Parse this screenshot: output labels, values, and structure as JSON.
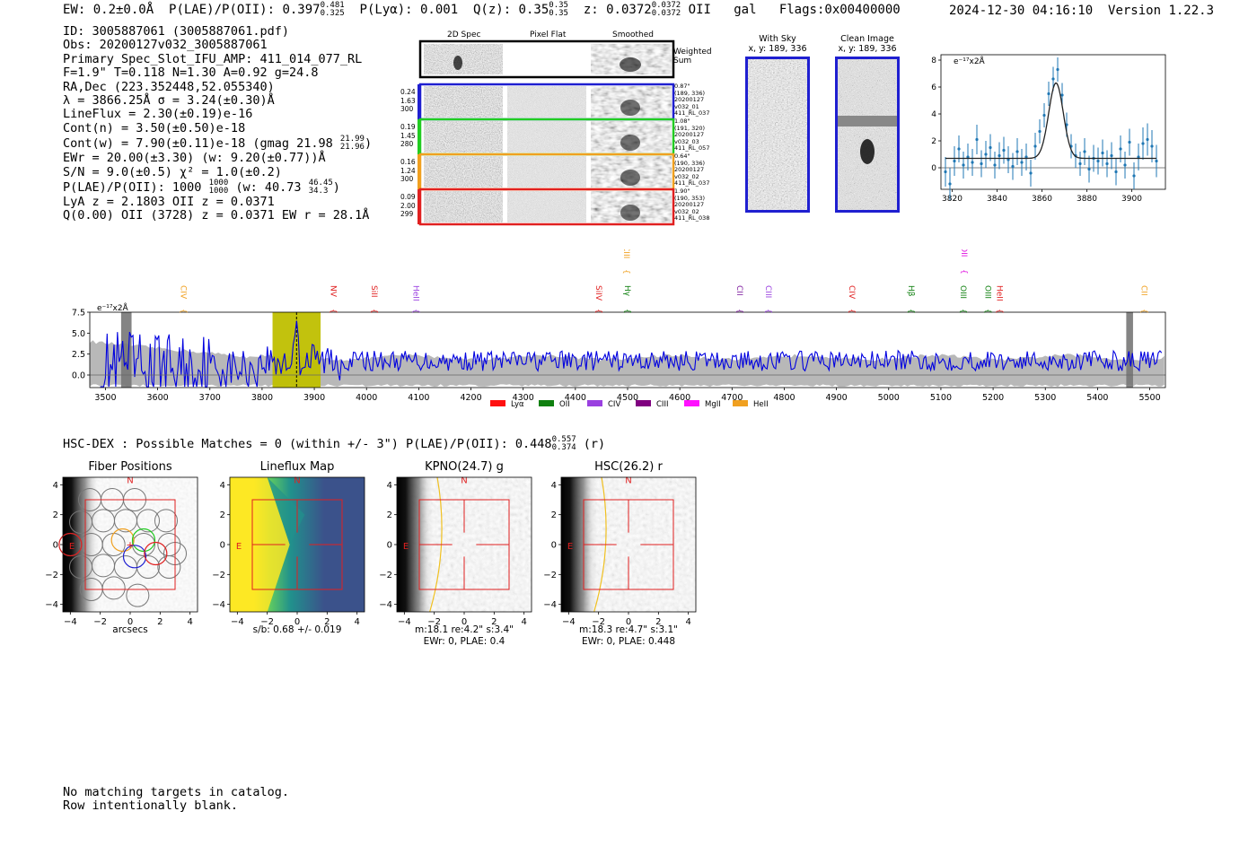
{
  "header": {
    "ew": "EW: 0.2±0.0Å",
    "plae_label": "P(LAE)/P(OII): 0.397",
    "plae_hi": "0.481",
    "plae_lo": "0.325",
    "plya": "P(Lyα): 0.001",
    "qz_label": "Q(z): 0.35",
    "qz_hi": "0.35",
    "qz_lo": "0.35",
    "z_label": "z: 0.0372",
    "z_hi": "0.0372",
    "z_lo": "0.0372",
    "line": "OII",
    "gal": "gal",
    "flags": "Flags:0x00400000",
    "datetime": "2024-12-30 04:16:10",
    "version": "Version 1.22.3"
  },
  "info": {
    "id": "ID: 3005887061 (3005887061.pdf)",
    "obs": "Obs: 20200127v032_3005887061",
    "primary": "Primary Spec_Slot_IFU_AMP: 411_014_077_RL",
    "fit": "F=1.9\"  T=0.118  N=1.30  A=0.92  g=24.8",
    "radec": "RA,Dec (223.352448,52.055340)",
    "lambda": "λ = 3866.25Å  σ = 3.24(±0.30)Å",
    "lineflux": "LineFlux = 2.30(±0.19)e-16",
    "contn": "Cont(n) = 3.50(±0.50)e-18",
    "contw": "Cont(w) = 7.90(±0.11)e-18 (gmag 21.98",
    "contw_hi": "21.99",
    "contw_lo": "21.96",
    "contw_end": ")",
    "ewr": "EWr = 20.00(±3.30) (w: 9.20(±0.77))Å",
    "sn": "S/N = 9.0(±0.5)  χ² = 1.0(±0.2)",
    "plae": "P(LAE)/P(OII): 1000",
    "plae_hi": "1000",
    "plae_lo": "1000",
    "plae_w": "(w: 40.73",
    "plae_w_hi": "46.45",
    "plae_w_lo": "34.3",
    "plae_end": ")",
    "lya": "LyA z = 2.1803  OII z = 0.0371",
    "q": "Q(0.00) OII (3728) z = 0.0371  EW r = 28.1Å"
  },
  "cutouts": {
    "col_2d": "2D Spec",
    "col_flat": "Pixel Flat",
    "col_smooth": "Smoothed",
    "weighted": "Weighted Sum",
    "rows": [
      {
        "color": "#1f1fd0",
        "left": [
          "0.24",
          "1.63",
          "300"
        ],
        "right": [
          "0.87\"",
          "(189, 336)",
          "20200127",
          "v032_01",
          "411_RL_037"
        ]
      },
      {
        "color": "#22cc22",
        "left": [
          "0.19",
          "1.45",
          "280"
        ],
        "right": [
          "1.08\"",
          "(191, 320)",
          "20200127",
          "v032_03",
          "411_RL_057"
        ]
      },
      {
        "color": "#f0a020",
        "left": [
          "0.16",
          "1.24",
          "300"
        ],
        "right": [
          "0.64\"",
          "(190, 336)",
          "20200127",
          "v032_02",
          "411_RL_037"
        ]
      },
      {
        "color": "#e02020",
        "left": [
          "0.09",
          "2.00",
          "299"
        ],
        "right": [
          "1.90\"",
          "(190, 353)",
          "20200127",
          "v032_02",
          "411_RL_038"
        ]
      }
    ]
  },
  "sky": {
    "with_sky_title": "With Sky",
    "with_sky_coords": "x, y: 189, 336",
    "clean_title": "Clean Image",
    "clean_coords": "x, y: 189, 336"
  },
  "line_fit": {
    "type": "scatter",
    "ylabel": "e⁻¹⁷x2Å",
    "xlim": [
      3815,
      3915
    ],
    "ylim": [
      -1.6,
      8.4
    ],
    "xticks": [
      "3820",
      "3840",
      "3860",
      "3880",
      "3900"
    ],
    "yticks": [
      "0",
      "2",
      "4",
      "6",
      "8"
    ],
    "model": {
      "center": 3866.25,
      "sigma": 3.24,
      "amp": 5.6,
      "baseline": 0.7
    },
    "points_x": [
      3817,
      3819,
      3821,
      3823,
      3825,
      3827,
      3829,
      3831,
      3833,
      3835,
      3837,
      3839,
      3841,
      3843,
      3845,
      3847,
      3849,
      3851,
      3853,
      3855,
      3857,
      3859,
      3861,
      3863,
      3865,
      3867,
      3869,
      3871,
      3873,
      3875,
      3877,
      3879,
      3881,
      3883,
      3885,
      3887,
      3889,
      3891,
      3893,
      3895,
      3897,
      3899,
      3901,
      3903,
      3905,
      3907,
      3909,
      3911
    ],
    "points_y": [
      -0.3,
      -1.2,
      0.5,
      1.4,
      0.2,
      0.8,
      0.4,
      2.1,
      0.3,
      1.0,
      1.5,
      0.2,
      0.9,
      1.3,
      0.6,
      0.1,
      1.2,
      0.4,
      0.8,
      -0.4,
      1.6,
      2.7,
      3.9,
      5.5,
      6.6,
      7.3,
      5.4,
      3.2,
      1.6,
      0.9,
      0.3,
      1.2,
      -0.1,
      0.7,
      0.5,
      1.1,
      0.3,
      0.9,
      -0.3,
      1.4,
      0.2,
      1.9,
      -0.6,
      0.8,
      1.8,
      2.1,
      1.6,
      0.5
    ],
    "errors": [
      1.1,
      1.2,
      1.1,
      1.0,
      1.0,
      1.0,
      1.0,
      1.1,
      1.0,
      1.0,
      1.0,
      1.0,
      1.0,
      1.0,
      1.0,
      1.0,
      1.0,
      1.0,
      1.0,
      1.0,
      1.0,
      0.9,
      0.9,
      0.9,
      0.9,
      0.9,
      0.9,
      0.9,
      0.9,
      0.9,
      0.9,
      1.0,
      1.0,
      1.0,
      1.0,
      1.0,
      1.0,
      1.0,
      1.0,
      1.0,
      1.0,
      1.0,
      1.0,
      1.0,
      1.2,
      1.2,
      1.2,
      1.2
    ]
  },
  "spectrum": {
    "type": "line",
    "ylabel": "e⁻¹⁷x2Å",
    "xlim": [
      3470,
      5530
    ],
    "ylim": [
      -1.5,
      7.5
    ],
    "xticks": [
      "3500",
      "3600",
      "3700",
      "3800",
      "3900",
      "4000",
      "4100",
      "4200",
      "4300",
      "4400",
      "4500",
      "4600",
      "4700",
      "4800",
      "4900",
      "5000",
      "5100",
      "5200",
      "5300",
      "5400",
      "5500"
    ],
    "yticks": [
      "0.0",
      "2.5",
      "5.0",
      "7.5"
    ],
    "highlight_band": [
      3820,
      3912
    ],
    "emission_line": 3866,
    "masked_bands": [
      [
        3530,
        3550
      ],
      [
        5455,
        5468
      ]
    ],
    "line_markers": [
      {
        "label": "CIV",
        "x": 3650,
        "color": "#f0a020",
        "row": "low"
      },
      {
        "label": "NV",
        "x": 3937,
        "color": "#e02020",
        "row": "low"
      },
      {
        "label": "SiII",
        "x": 4015,
        "color": "#e02020",
        "row": "low"
      },
      {
        "label": "HeII",
        "x": 4095,
        "color": "#9a40e0",
        "row": "low"
      },
      {
        "label": "SiIV",
        "x": 4445,
        "color": "#e02020",
        "row": "low"
      },
      {
        "label": "Hγ",
        "x": 4500,
        "color": "#108010",
        "row": "low"
      },
      {
        "label": "CIII",
        "x": 4498,
        "color": "#f0a020",
        "row": "high"
      },
      {
        "label": "CII",
        "x": 4715,
        "color": "#8020a0",
        "row": "low"
      },
      {
        "label": "CIII",
        "x": 4770,
        "color": "#9a40e0",
        "row": "low"
      },
      {
        "label": "CIV",
        "x": 4930,
        "color": "#e02020",
        "row": "low"
      },
      {
        "label": "Hβ",
        "x": 5043,
        "color": "#108010",
        "row": "low"
      },
      {
        "label": "OII",
        "x": 5145,
        "color": "#e010e0",
        "row": "high"
      },
      {
        "label": "OIII",
        "x": 5143,
        "color": "#108010",
        "row": "low"
      },
      {
        "label": "OIII",
        "x": 5190,
        "color": "#108010",
        "row": "low"
      },
      {
        "label": "HeII",
        "x": 5213,
        "color": "#e02020",
        "row": "low"
      },
      {
        "label": "CII",
        "x": 5490,
        "color": "#f0a020",
        "row": "low"
      }
    ],
    "legend": [
      {
        "label": "Lyα",
        "color": "#ff1010"
      },
      {
        "label": "OII",
        "color": "#108010"
      },
      {
        "label": "CIV",
        "color": "#9a40e0"
      },
      {
        "label": "CIII",
        "color": "#800080"
      },
      {
        "label": "MgII",
        "color": "#ff10ff"
      },
      {
        "label": "HeII",
        "color": "#f0a020"
      }
    ]
  },
  "matches": {
    "line": "HSC-DEX : Possible Matches = 0 (within +/- 3\")  P(LAE)/P(OII): 0.448",
    "hi": "0.557",
    "lo": "0.374",
    "band": "(r)"
  },
  "images": [
    {
      "title": "Fiber Positions",
      "xlabel": "arcsecs",
      "sub": []
    },
    {
      "title": "Lineflux Map",
      "xlabel": "",
      "sub": [
        "s/b: 0.68 +/- 0.019"
      ]
    },
    {
      "title": "KPNO(24.7) g",
      "xlabel": "",
      "sub": [
        "m:18.1  re:4.2\"  s:3.4\"",
        "EWr: 0, PLAE: 0.4"
      ]
    },
    {
      "title": "HSC(26.2) r",
      "xlabel": "",
      "sub": [
        "m:18.3  re:4.7\"  s:3.1\"",
        "EWr: 0, PLAE: 0.448"
      ]
    }
  ],
  "image_axes": {
    "ticks": [
      "−4",
      "−2",
      "0",
      "2",
      "4"
    ],
    "north": "N",
    "east": "E"
  },
  "footer": {
    "line1": "No matching targets in catalog.",
    "line2": "Row intentionally blank."
  }
}
